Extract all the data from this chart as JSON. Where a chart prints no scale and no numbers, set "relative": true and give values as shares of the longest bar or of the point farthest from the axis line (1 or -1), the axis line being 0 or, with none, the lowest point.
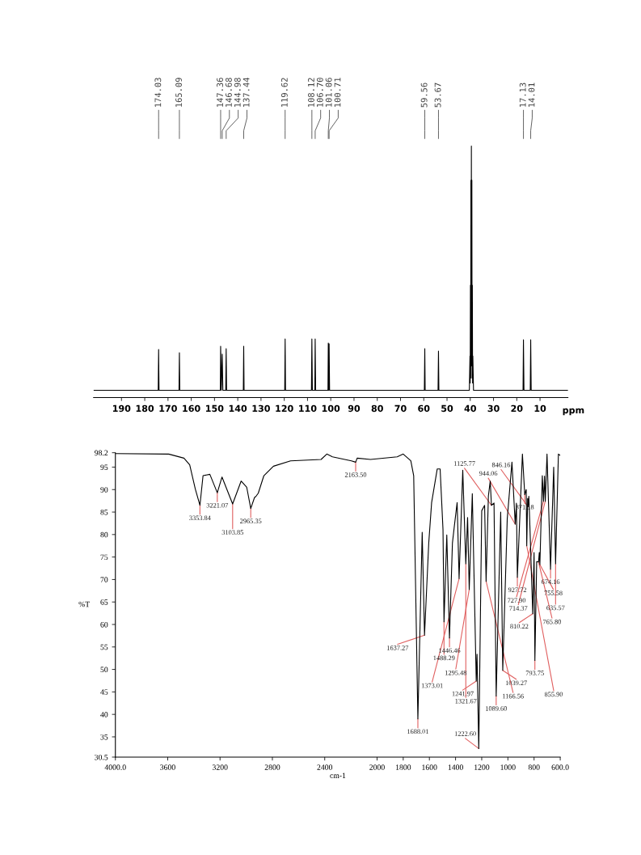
{
  "chart_data": [
    {
      "type": "line",
      "relative": true,
      "xlabel": "ppm",
      "xlim": [
        202,
        -2
      ],
      "xticks": [
        190,
        180,
        170,
        160,
        150,
        140,
        130,
        120,
        110,
        100,
        90,
        80,
        70,
        60,
        50,
        40,
        30,
        20,
        10
      ],
      "series": [
        {
          "color": "#000000",
          "x": [
            202,
            174.2,
            174.03,
            173.86,
            165.26,
            165.09,
            164.92,
            147.5,
            147.36,
            147.05,
            146.68,
            146.4,
            145.15,
            144.98,
            144.8,
            137.6,
            137.44,
            137.28,
            119.8,
            119.62,
            119.45,
            108.3,
            108.12,
            107.9,
            106.85,
            106.7,
            106.5,
            101.2,
            101.06,
            100.9,
            100.71,
            100.5,
            59.75,
            59.56,
            59.4,
            53.85,
            53.67,
            53.5,
            40.4,
            40.13,
            40.03,
            39.92,
            39.82,
            39.72,
            39.62,
            39.52,
            39.42,
            39.31,
            39.21,
            39.1,
            39.0,
            38.89,
            38.6,
            17.3,
            17.13,
            16.9,
            14.2,
            14.01,
            13.8,
            -2
          ],
          "values": [
            0,
            0,
            0.167,
            0,
            0,
            0.154,
            0,
            0,
            0.18,
            0,
            0.148,
            0,
            0,
            0.17,
            0,
            0,
            0.18,
            0,
            0,
            0.21,
            0,
            0,
            0.21,
            0,
            0,
            0.21,
            0,
            0,
            0.193,
            0,
            0.19,
            0,
            0,
            0.17,
            0,
            0,
            0.16,
            0,
            0,
            0.14,
            0.03,
            0.43,
            0.05,
            0.86,
            0.1,
            1.0,
            0.1,
            0.86,
            0.05,
            0.43,
            0.03,
            0.14,
            0,
            0,
            0.207,
            0,
            0,
            0.207,
            0,
            0
          ]
        }
      ],
      "annotations": [
        {
          "text": "174.03",
          "x": 174.03
        },
        {
          "text": "165.09",
          "x": 165.09
        },
        {
          "text": "147.36",
          "x": 147.36
        },
        {
          "text": "146.68",
          "x": 146.68
        },
        {
          "text": "144.98",
          "x": 144.98
        },
        {
          "text": "137.44",
          "x": 137.44
        },
        {
          "text": "119.62",
          "x": 119.62
        },
        {
          "text": "108.12",
          "x": 108.12
        },
        {
          "text": "106.70",
          "x": 106.7
        },
        {
          "text": "101.06",
          "x": 101.06
        },
        {
          "text": "100.71",
          "x": 100.71
        },
        {
          "text": "59.56",
          "x": 59.56
        },
        {
          "text": "53.67",
          "x": 53.67
        },
        {
          "text": "17.13",
          "x": 17.13
        },
        {
          "text": "14.01",
          "x": 14.01
        }
      ]
    },
    {
      "type": "line",
      "xlabel": "cm-1",
      "ylabel": "%T",
      "xlim": [
        4000,
        600
      ],
      "ylim": [
        30.5,
        98.2
      ],
      "xticks": [
        {
          "value": 4000,
          "label": "4000.0"
        },
        3600,
        3200,
        2800,
        2400,
        2000,
        1800,
        1600,
        1400,
        1200,
        1000,
        800,
        {
          "value": 600,
          "label": "600.0"
        }
      ],
      "yticks": [
        30.5,
        35,
        40,
        45,
        50,
        55,
        60,
        65,
        70,
        75,
        80,
        85,
        90,
        95,
        98.2
      ],
      "series": [
        {
          "color": "#000000",
          "x": [
            4000,
            3592,
            3476,
            3432,
            3389,
            3353.84,
            3330,
            3278,
            3221.07,
            3185,
            3103.85,
            3039,
            2996,
            2965.35,
            2937,
            2923,
            2908,
            2865,
            2792,
            2661,
            2428,
            2384,
            2341,
            2196,
            2163.5,
            2152,
            2050,
            1846,
            1800,
            1742,
            1720,
            1688.01,
            1655,
            1637.27,
            1605,
            1583,
            1540,
            1518,
            1496,
            1488.29,
            1467,
            1446.46,
            1424,
            1410,
            1388,
            1373.01,
            1345,
            1321.67,
            1308,
            1295.48,
            1272,
            1241.97,
            1236,
            1222.6,
            1200,
            1178,
            1166.56,
            1149,
            1135,
            1125.77,
            1106,
            1089.6,
            1055,
            1039.27,
            1005,
            969,
            944.06,
            935,
            927.72,
            889,
            871.18,
            860,
            855.9,
            849,
            846.16,
            840,
            831,
            810.22,
            800,
            793.75,
            780,
            765.8,
            760,
            755.58,
            737,
            727.9,
            720,
            714.37,
            701,
            674.16,
            650,
            635.57,
            614,
            600
          ],
          "values": [
            98.0,
            97.9,
            97.0,
            95.5,
            90.1,
            86.5,
            93.1,
            93.4,
            89.3,
            92.8,
            86.8,
            91.9,
            90.5,
            85.8,
            88.2,
            88.6,
            89.2,
            93.1,
            95.2,
            96.4,
            96.7,
            97.9,
            97.3,
            96.4,
            96.1,
            97.0,
            96.7,
            97.3,
            97.9,
            96.4,
            93.1,
            39.0,
            80.5,
            57.6,
            78.1,
            87.1,
            94.6,
            94.6,
            81.1,
            60.6,
            79.9,
            57.0,
            78.1,
            81.7,
            87.1,
            70.2,
            94.3,
            73.5,
            83.8,
            67.8,
            89.1,
            47.4,
            53.4,
            32.4,
            85.3,
            86.5,
            69.6,
            88.6,
            91.9,
            86.5,
            87.0,
            44.1,
            85.0,
            49.8,
            83.5,
            96.1,
            82.3,
            87.0,
            70.5,
            97.9,
            88.9,
            90.0,
            77.5,
            88.0,
            86.2,
            88.5,
            81.1,
            62.4,
            76.0,
            52.0,
            74.0,
            73.9,
            76.0,
            73.3,
            93.1,
            87.4,
            93.0,
            87.4,
            97.9,
            72.3,
            95.0,
            73.5,
            97.9,
            97.6
          ]
        }
      ],
      "annotations": [
        {
          "text": "3353.84",
          "x": 3353.84,
          "y": 86.5
        },
        {
          "text": "3221.07",
          "x": 3221.07,
          "y": 89.3
        },
        {
          "text": "3103.85",
          "x": 3103.85,
          "y": 86.8
        },
        {
          "text": "2965.35",
          "x": 2965.35,
          "y": 85.8
        },
        {
          "text": "2163.50",
          "x": 2163.5,
          "y": 96.1
        },
        {
          "text": "1688.01",
          "x": 1688.01,
          "y": 39.0
        },
        {
          "text": "1637.27",
          "x": 1637.27,
          "y": 57.6
        },
        {
          "text": "1488.29",
          "x": 1488.29,
          "y": 60.6
        },
        {
          "text": "1446.46",
          "x": 1446.46,
          "y": 57.0
        },
        {
          "text": "1373.01",
          "x": 1373.01,
          "y": 70.2
        },
        {
          "text": "1321.67",
          "x": 1321.67,
          "y": 73.5
        },
        {
          "text": "1295.48",
          "x": 1295.48,
          "y": 67.8
        },
        {
          "text": "1241.97",
          "x": 1241.97,
          "y": 47.4
        },
        {
          "text": "1222.60",
          "x": 1222.6,
          "y": 32.4
        },
        {
          "text": "1166.56",
          "x": 1166.56,
          "y": 69.6
        },
        {
          "text": "1125.77",
          "x": 1125.77,
          "y": 86.5
        },
        {
          "text": "1089.60",
          "x": 1089.6,
          "y": 44.1
        },
        {
          "text": "1039.27",
          "x": 1039.27,
          "y": 49.8
        },
        {
          "text": "944.06",
          "x": 944.06,
          "y": 82.3
        },
        {
          "text": "927.72",
          "x": 927.72,
          "y": 70.5
        },
        {
          "text": "871.18",
          "x": 871.18,
          "y": 88.9
        },
        {
          "text": "855.90",
          "x": 855.9,
          "y": 77.5
        },
        {
          "text": "846.16",
          "x": 846.16,
          "y": 86.2
        },
        {
          "text": "810.22",
          "x": 810.22,
          "y": 62.4
        },
        {
          "text": "793.75",
          "x": 793.75,
          "y": 52.0
        },
        {
          "text": "765.80",
          "x": 765.8,
          "y": 73.9
        },
        {
          "text": "755.58",
          "x": 755.58,
          "y": 73.3
        },
        {
          "text": "727.90",
          "x": 727.9,
          "y": 87.4
        },
        {
          "text": "714.37",
          "x": 714.37,
          "y": 87.4
        },
        {
          "text": "674.16",
          "x": 674.16,
          "y": 72.3
        },
        {
          "text": "635.57",
          "x": 635.57,
          "y": 73.5
        }
      ]
    }
  ]
}
